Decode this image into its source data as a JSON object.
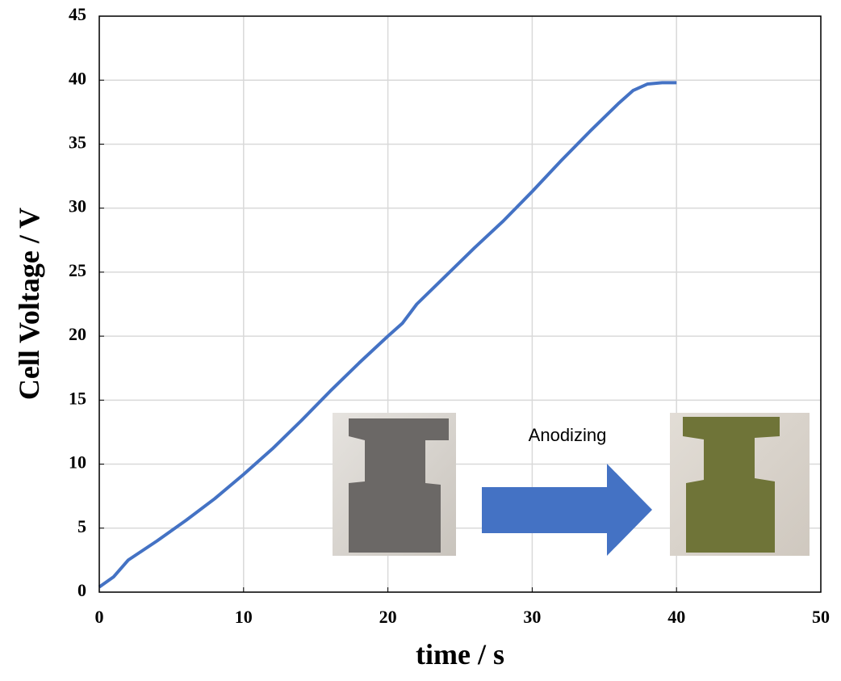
{
  "chart_data": {
    "type": "line",
    "x_label": "time / s",
    "y_label": "Cell Voltage / V",
    "annotation": "Anodizing",
    "xlim": [
      0,
      50
    ],
    "xticks": [
      0,
      10,
      20,
      30,
      40,
      50
    ],
    "ylim": [
      0,
      45
    ],
    "yticks": [
      0,
      5,
      10,
      15,
      20,
      25,
      30,
      35,
      40,
      45
    ],
    "grid": true,
    "series": [
      {
        "color": "#4472c4",
        "x": [
          0,
          1,
          2,
          4,
          6,
          8,
          10,
          12,
          14,
          16,
          18,
          20,
          21,
          22,
          24,
          26,
          28,
          30,
          32,
          34,
          36,
          37,
          38,
          39,
          40
        ],
        "values": [
          0.4,
          1.2,
          2.5,
          4,
          5.6,
          7.3,
          9.2,
          11.2,
          13.4,
          15.7,
          17.9,
          20,
          21,
          22.5,
          24.7,
          26.9,
          29,
          31.3,
          33.7,
          36,
          38.2,
          39.2,
          39.7,
          39.8,
          39.8
        ]
      }
    ]
  }
}
